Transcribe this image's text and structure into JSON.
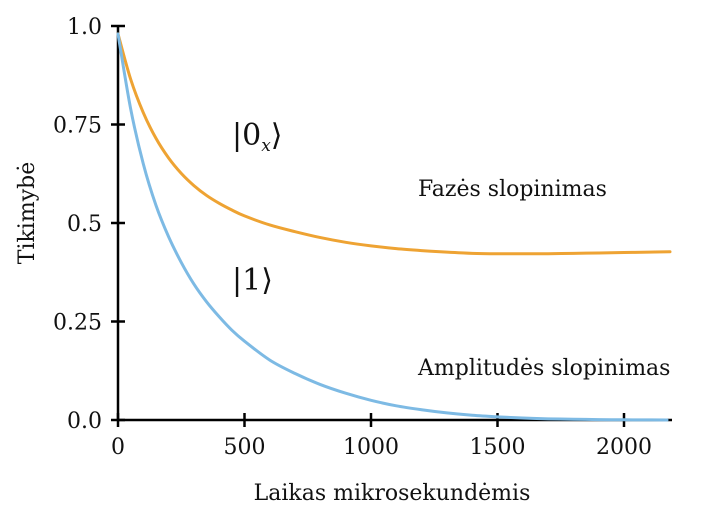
{
  "chart_data": {
    "type": "line",
    "title": "",
    "xlabel": "Laikas mikrosekundėmis",
    "ylabel": "Tikimybė",
    "xlim": [
      0,
      2200
    ],
    "ylim": [
      0,
      1.0
    ],
    "grid": false,
    "x_ticks": [
      0,
      500,
      1000,
      1500,
      2000
    ],
    "x_tick_labels": [
      "0",
      "500",
      "1000",
      "1500",
      "2000"
    ],
    "y_ticks": [
      0,
      0.25,
      0.5,
      0.75,
      1.0
    ],
    "y_tick_labels": [
      "0.0",
      "0.25",
      "0.5",
      "0.75",
      "1.0"
    ],
    "series": [
      {
        "name": "Fazės slopinimas",
        "state_label": "|0",
        "state_sub": "x",
        "state_close": "⟩",
        "color": "#EEA333",
        "x": [
          0,
          50,
          100,
          150,
          200,
          250,
          300,
          350,
          400,
          450,
          500,
          600,
          700,
          800,
          900,
          1000,
          1100,
          1200,
          1300,
          1400,
          1500,
          1600,
          1700,
          1800,
          1900,
          2000,
          2100,
          2200
        ],
        "y": [
          0.98,
          0.865,
          0.78,
          0.715,
          0.665,
          0.626,
          0.595,
          0.57,
          0.55,
          0.533,
          0.518,
          0.495,
          0.478,
          0.463,
          0.451,
          0.442,
          0.435,
          0.43,
          0.426,
          0.423,
          0.422,
          0.422,
          0.422,
          0.423,
          0.424,
          0.425,
          0.426,
          0.427
        ]
      },
      {
        "name": "Amplitudės slopinimas",
        "state_label": "|1⟩",
        "color": "#7DBAE4",
        "x": [
          0,
          50,
          100,
          150,
          200,
          250,
          300,
          350,
          400,
          450,
          500,
          600,
          700,
          800,
          900,
          1000,
          1100,
          1200,
          1300,
          1400,
          1500,
          1600,
          1700,
          1800,
          1900,
          2000,
          2100,
          2170
        ],
        "y": [
          0.98,
          0.79,
          0.65,
          0.545,
          0.465,
          0.4,
          0.345,
          0.3,
          0.262,
          0.228,
          0.2,
          0.152,
          0.118,
          0.09,
          0.068,
          0.05,
          0.036,
          0.026,
          0.018,
          0.012,
          0.008,
          0.005,
          0.003,
          0.002,
          0.001,
          0.0005,
          0.0002,
          0.0
        ]
      }
    ]
  }
}
